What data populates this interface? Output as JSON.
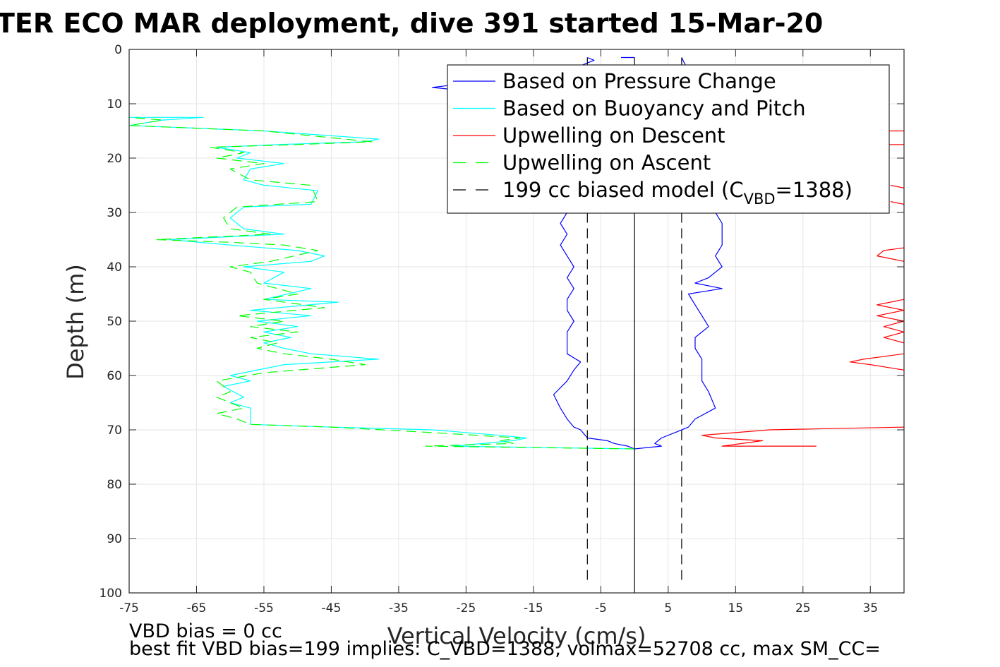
{
  "title": "TER ECO MAR deployment, dive 391 started 15-Mar-20",
  "footer": {
    "line1": "VBD bias = 0 cc",
    "line2": "best fit VBD bias=199 implies: C_VBD=1388, volmax=52708 cc, max SM_CC="
  },
  "chart_data": {
    "type": "line",
    "xlabel": "Vertical Velocity (cm/s)",
    "ylabel": "Depth (m)",
    "xlim": [
      -75,
      40
    ],
    "ylim": [
      0,
      100
    ],
    "y_reversed": true,
    "grid": true,
    "x_ticks": [
      -75,
      -65,
      -55,
      -45,
      -35,
      -25,
      -15,
      -5,
      5,
      15,
      25,
      35
    ],
    "y_ticks": [
      0,
      10,
      20,
      30,
      40,
      50,
      60,
      70,
      80,
      90,
      100
    ],
    "legend_position": "top-right",
    "legend": [
      {
        "label": "Based on Pressure Change",
        "color": "#0000ff",
        "dash": "solid"
      },
      {
        "label": "Based on Buoyancy and Pitch",
        "color": "#00ffff",
        "dash": "solid"
      },
      {
        "label": "Upwelling on Descent",
        "color": "#ff0000",
        "dash": "solid"
      },
      {
        "label": "Upwelling on Ascent",
        "color": "#00ff00",
        "dash": "dashed"
      },
      {
        "label": "199 cc biased model (C",
        "sub": "VBD",
        "suffix": "=1388)",
        "color": "#000000",
        "dash": "dashed"
      }
    ],
    "series": [
      {
        "name": "Based on Pressure Change",
        "color": "#0000ff",
        "dash": "solid",
        "segments": [
          [
            [
              -7,
              1.5
            ],
            [
              -6,
              2
            ],
            [
              -8,
              3
            ],
            [
              -15,
              4
            ],
            [
              -20,
              5.5
            ],
            [
              -30,
              7
            ],
            [
              -22,
              8
            ],
            [
              -18,
              10
            ],
            [
              -14,
              14
            ],
            [
              -13,
              18
            ],
            [
              -12,
              22
            ],
            [
              -11,
              26
            ],
            [
              -10,
              30
            ],
            [
              -11,
              32
            ],
            [
              -10,
              34
            ],
            [
              -11,
              36
            ],
            [
              -10,
              38
            ],
            [
              -9,
              40
            ],
            [
              -10,
              42
            ],
            [
              -9,
              44
            ],
            [
              -10,
              46
            ],
            [
              -10,
              48
            ],
            [
              -9,
              50
            ],
            [
              -10,
              52
            ],
            [
              -10,
              54
            ],
            [
              -10,
              56
            ],
            [
              -8,
              57.5
            ],
            [
              -9,
              59
            ],
            [
              -10,
              61
            ],
            [
              -12,
              63.5
            ],
            [
              -11,
              66
            ],
            [
              -10,
              68
            ],
            [
              -9,
              69.5
            ],
            [
              -8,
              70
            ],
            [
              -7,
              71.5
            ],
            [
              -4,
              72
            ],
            [
              -3,
              72.5
            ],
            [
              -1,
              73
            ],
            [
              0,
              73.5
            ]
          ],
          [
            [
              -2,
              1.5
            ],
            [
              0,
              1.5
            ]
          ],
          [
            [
              0,
              73.5
            ],
            [
              4,
              73
            ],
            [
              3,
              72.5
            ],
            [
              4,
              71.5
            ],
            [
              6,
              70.5
            ],
            [
              8,
              69.5
            ],
            [
              9,
              68
            ],
            [
              12,
              66
            ],
            [
              11,
              63
            ],
            [
              10,
              61
            ],
            [
              10,
              59
            ],
            [
              10,
              57
            ],
            [
              9,
              55
            ],
            [
              9,
              53
            ],
            [
              11,
              51
            ],
            [
              10,
              49
            ],
            [
              9,
              47
            ],
            [
              8,
              45
            ],
            [
              13,
              44
            ],
            [
              9,
              43
            ],
            [
              11,
              42
            ],
            [
              13,
              40
            ],
            [
              12,
              38
            ],
            [
              13,
              36
            ],
            [
              13,
              32
            ],
            [
              12,
              30
            ],
            [
              14,
              27
            ],
            [
              13,
              24
            ],
            [
              12,
              20
            ],
            [
              11,
              16
            ],
            [
              10,
              12
            ],
            [
              9,
              8
            ],
            [
              8,
              4
            ],
            [
              7,
              1.5
            ]
          ]
        ]
      },
      {
        "name": "Based on Buoyancy and Pitch",
        "color": "#00ffff",
        "dash": "solid",
        "segments": [
          [
            [
              0,
              73.5
            ],
            [
              -27,
              73
            ],
            [
              -18,
              72
            ],
            [
              -16,
              71.5
            ],
            [
              -20,
              71
            ],
            [
              -30,
              70
            ],
            [
              -45,
              69.5
            ],
            [
              -57,
              69
            ],
            [
              -57,
              66
            ],
            [
              -60,
              65
            ],
            [
              -58,
              64
            ],
            [
              -61,
              62
            ],
            [
              -57,
              61
            ],
            [
              -60,
              60
            ],
            [
              -52,
              58
            ],
            [
              -38,
              57
            ],
            [
              -48,
              56
            ],
            [
              -52,
              55
            ],
            [
              -55,
              54
            ],
            [
              -51,
              53
            ],
            [
              -55,
              52
            ],
            [
              -50,
              51
            ],
            [
              -56,
              50
            ],
            [
              -48,
              49
            ],
            [
              -57,
              48
            ],
            [
              -44,
              46.5
            ],
            [
              -55,
              46
            ],
            [
              -48,
              44
            ],
            [
              -55,
              43
            ],
            [
              -52,
              41
            ],
            [
              -58,
              40
            ],
            [
              -48,
              39
            ],
            [
              -46,
              38
            ],
            [
              -50,
              37
            ],
            [
              -60,
              36
            ],
            [
              -69,
              35
            ],
            [
              -52,
              34
            ],
            [
              -58,
              33
            ],
            [
              -60,
              31
            ],
            [
              -58,
              29
            ],
            [
              -48,
              28.5
            ],
            [
              -47,
              26
            ],
            [
              -55,
              25
            ],
            [
              -58,
              24
            ],
            [
              -57,
              22
            ],
            [
              -52,
              21
            ],
            [
              -59,
              20
            ],
            [
              -57,
              19
            ],
            [
              -62,
              18
            ],
            [
              -53,
              17.5
            ],
            [
              -40,
              17
            ],
            [
              -38,
              16.5
            ],
            [
              -55,
              15
            ],
            [
              -75,
              14
            ],
            [
              -70,
              13
            ],
            [
              -64,
              12.5
            ],
            [
              -75,
              12.5
            ]
          ]
        ]
      },
      {
        "name": "Upwelling on Ascent",
        "color": "#00ff00",
        "dash": "dashed",
        "segments": [
          [
            [
              0,
              73.5
            ],
            [
              -31,
              73
            ],
            [
              -18,
              72.5
            ],
            [
              -20,
              72
            ],
            [
              -17,
              71.5
            ],
            [
              -30,
              70.5
            ],
            [
              -45,
              69.5
            ],
            [
              -57,
              69
            ],
            [
              -59,
              68
            ],
            [
              -62,
              67
            ],
            [
              -58,
              66
            ],
            [
              -62,
              64
            ],
            [
              -60,
              63
            ],
            [
              -62,
              61
            ],
            [
              -55,
              59.5
            ],
            [
              -40,
              58
            ],
            [
              -45,
              57
            ],
            [
              -52,
              56
            ],
            [
              -56,
              55
            ],
            [
              -53,
              54
            ],
            [
              -57,
              53
            ],
            [
              -50,
              52
            ],
            [
              -57,
              51
            ],
            [
              -52,
              50
            ],
            [
              -59,
              49
            ],
            [
              -46,
              47.5
            ],
            [
              -55,
              46
            ],
            [
              -50,
              45
            ],
            [
              -56,
              43
            ],
            [
              -57,
              41
            ],
            [
              -60,
              40
            ],
            [
              -54,
              39
            ],
            [
              -47,
              37
            ],
            [
              -52,
              36
            ],
            [
              -60,
              35.5
            ],
            [
              -71,
              35
            ],
            [
              -54,
              34
            ],
            [
              -60,
              33
            ],
            [
              -61,
              31
            ],
            [
              -59,
              29
            ],
            [
              -47,
              28
            ],
            [
              -48,
              25
            ],
            [
              -57,
              24
            ],
            [
              -60,
              22
            ],
            [
              -55,
              21
            ],
            [
              -62,
              20
            ],
            [
              -58,
              19
            ],
            [
              -63,
              18
            ],
            [
              -50,
              17.5
            ],
            [
              -39,
              17
            ],
            [
              -55,
              15
            ],
            [
              -75,
              14
            ],
            [
              -70,
              13
            ],
            [
              -75,
              12.5
            ]
          ]
        ]
      },
      {
        "name": "Upwelling on Descent",
        "color": "#ff0000",
        "dash": "solid",
        "segments": [
          [
            [
              27,
              73
            ],
            [
              13,
              73
            ],
            [
              19,
              72
            ],
            [
              12,
              71.5
            ],
            [
              10,
              71
            ],
            [
              20,
              70
            ],
            [
              40,
              69.5
            ]
          ],
          [
            [
              40,
              59
            ],
            [
              35,
              58
            ],
            [
              32,
              57.5
            ],
            [
              34,
              57
            ],
            [
              40,
              56
            ]
          ],
          [
            [
              40,
              54
            ],
            [
              37,
              53
            ],
            [
              40,
              52
            ],
            [
              37,
              51
            ],
            [
              40,
              50
            ],
            [
              36,
              49
            ],
            [
              40,
              48
            ],
            [
              36,
              47
            ],
            [
              40,
              46
            ]
          ],
          [
            [
              40,
              39
            ],
            [
              36,
              38
            ],
            [
              37,
              37
            ],
            [
              40,
              36.5
            ]
          ],
          [
            [
              40,
              28.5
            ],
            [
              38,
              28
            ]
          ],
          [
            [
              40,
              25.5
            ],
            [
              38,
              25
            ]
          ],
          [
            [
              40,
              17.5
            ],
            [
              37,
              17.5
            ]
          ],
          [
            [
              40,
              15
            ],
            [
              37,
              15
            ]
          ]
        ]
      },
      {
        "name": "199 cc biased model",
        "color": "#000000",
        "dash": "dashed",
        "segments": [
          [
            [
              -7,
              1.5
            ],
            [
              -7,
              98
            ]
          ],
          [
            [
              7,
              1.5
            ],
            [
              7,
              98
            ]
          ]
        ]
      },
      {
        "name": "zero line",
        "color": "#000000",
        "dash": "solid",
        "segments": [
          [
            [
              0,
              1.5
            ],
            [
              0,
              100
            ]
          ]
        ]
      }
    ]
  }
}
